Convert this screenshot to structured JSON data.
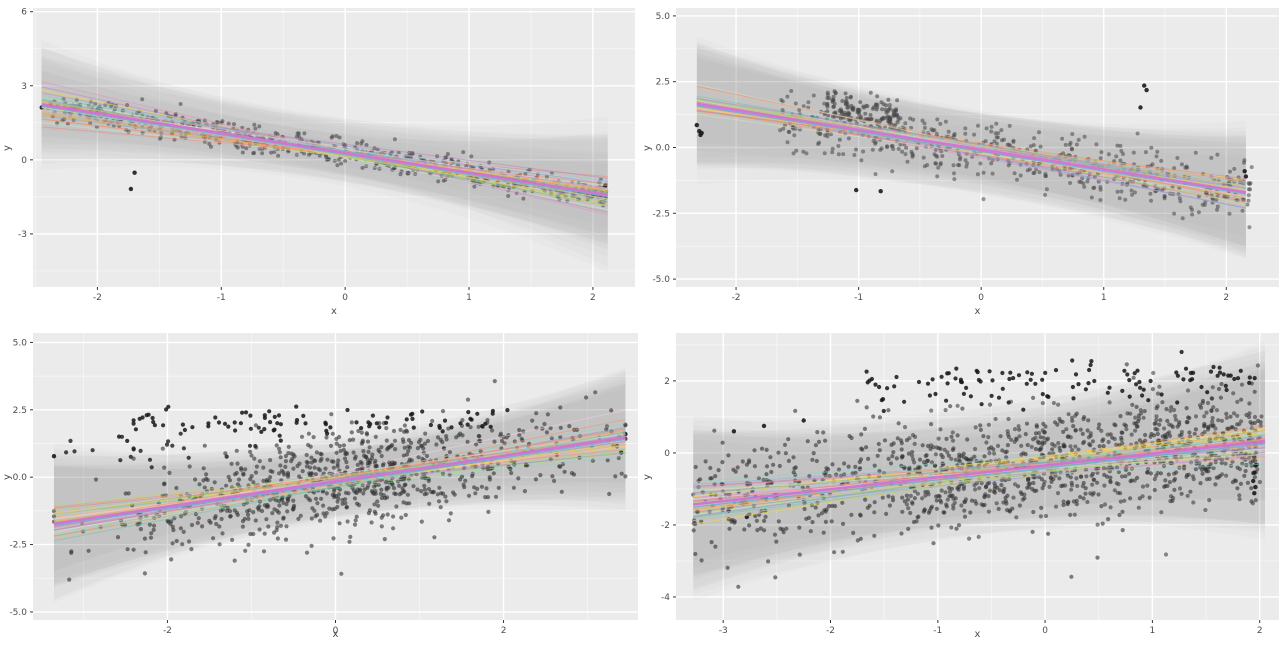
{
  "figure": {
    "rows": 2,
    "cols": 2,
    "description": "2x2 grid of ggplot-style scatter plots with posterior regression line draws, gray uncertainty ribbons and a thick orchid mean fit line"
  },
  "style": {
    "panel_bg": "#ebebeb",
    "grid_major": "#ffffff",
    "grid_minor": "#f7f7f7",
    "tick_mark": "#333333",
    "tick_label": "#4d4d4d",
    "axis_label": "#4d4d4d",
    "fit_line": "#d16fd6",
    "accent_line": "#74a9d8",
    "ribbon": "#6e6e6e",
    "palette": [
      "#66c2a5",
      "#fc8d62",
      "#8da0cb",
      "#e78ac3",
      "#a6d854",
      "#ffd92f",
      "#e5c494",
      "#8dd3c7",
      "#bebada",
      "#fb8072",
      "#80b1d3",
      "#fdb462",
      "#b3de69",
      "#fccde5",
      "#bc80bd",
      "#ccebc5"
    ]
  },
  "chart_data": [
    {
      "type": "scatter",
      "position": "top-left",
      "xlabel": "x",
      "ylabel": "y",
      "x_domain": [
        -2.52,
        2.34
      ],
      "y_domain": [
        -5.15,
        6.15
      ],
      "x_major_ticks": [
        -2,
        -1,
        0,
        1,
        2
      ],
      "x_tick_labels": [
        "-2",
        "-1",
        "0",
        "1",
        "2"
      ],
      "y_major_ticks": [
        6,
        3,
        0,
        -3
      ],
      "y_tick_labels": [
        "6",
        "3",
        "0",
        "-3"
      ],
      "regression": {
        "intercept": 0.28,
        "slope": -0.8
      },
      "seed": 101,
      "clusters": [
        {
          "n": 760,
          "x": {
            "type": "uniform",
            "min": -2.42,
            "max": 2.12
          },
          "y": {
            "intercept": 0.28,
            "slope": -0.8,
            "sd": 0.27
          },
          "color": "#3f3f3f",
          "opacity": 0.55,
          "r": 2
        }
      ],
      "extra_points": [
        [
          -2.45,
          2.12
        ],
        [
          -1.7,
          -0.52
        ],
        [
          -1.73,
          -1.18
        ],
        [
          2.1,
          -1.05
        ]
      ],
      "extra_style": {
        "color": "#1a1a1a",
        "opacity": 0.9,
        "r": 2.2
      },
      "band": {
        "x_min": -2.45,
        "x_max": 2.12,
        "ribbons": 12,
        "hw_base": 1.0,
        "hw_sd": 0.18,
        "edge_extra": [
          0.6,
          1.6
        ],
        "center_shift": [
          -0.45,
          0.15
        ],
        "slope_jitter": 0.05,
        "intercept_jitter": 0.13,
        "opacity": 0.028
      },
      "spaghetti": {
        "n": 48,
        "slope_sd": 0.11,
        "intercept_sd": 0.12,
        "width": 1,
        "opacity": 0.5
      },
      "accent_lines": [
        {
          "offset": -0.07,
          "width": 1.4
        }
      ]
    },
    {
      "type": "scatter",
      "position": "top-right",
      "xlabel": "x",
      "ylabel": "y",
      "x_domain": [
        -2.49,
        2.43
      ],
      "y_domain": [
        -5.3,
        5.3
      ],
      "x_major_ticks": [
        -2,
        -1,
        0,
        1,
        2
      ],
      "x_tick_labels": [
        "-2",
        "-1",
        "0",
        "1",
        "2"
      ],
      "y_major_ticks": [
        5,
        2.5,
        0,
        -2.5,
        -5
      ],
      "y_tick_labels": [
        "5.0",
        "2.5",
        "0.0",
        "-2.5",
        "-5.0"
      ],
      "regression": {
        "intercept": -0.08,
        "slope": -0.75
      },
      "seed": 202,
      "clusters": [
        {
          "n": 620,
          "x": {
            "type": "striped",
            "min": -1.62,
            "max": 2.16,
            "step": 0.05,
            "jitter": 0.012
          },
          "y": {
            "intercept": -0.08,
            "slope": -0.75,
            "sd": 0.52
          },
          "color": "#474747",
          "opacity": 0.55,
          "r": 2
        },
        {
          "n": 150,
          "x": {
            "type": "striped",
            "min": -1.25,
            "max": -0.7,
            "step": 0.05,
            "jitter": 0.012
          },
          "y": {
            "intercept": 0.55,
            "slope": -0.75,
            "sd": 0.42
          },
          "color": "#474747",
          "opacity": 0.6,
          "r": 2
        }
      ],
      "extra_points": [
        [
          -2.32,
          0.85
        ],
        [
          -2.3,
          0.62
        ],
        [
          -2.28,
          0.55
        ],
        [
          -2.29,
          0.48
        ],
        [
          1.33,
          2.35
        ],
        [
          1.35,
          2.18
        ],
        [
          1.3,
          1.52
        ],
        [
          -1.02,
          -1.62
        ],
        [
          -0.82,
          -1.66
        ],
        [
          2.15,
          -0.9
        ],
        [
          2.16,
          -1.1
        ]
      ],
      "extra_style": {
        "color": "#1a1a1a",
        "opacity": 0.9,
        "r": 2.2
      },
      "band": {
        "x_min": -2.32,
        "x_max": 2.16,
        "ribbons": 12,
        "hw_base": 1.2,
        "hw_sd": 0.16,
        "edge_extra": [
          0.5,
          1.3
        ],
        "center_shift": [
          -0.3,
          0.3
        ],
        "slope_jitter": 0.05,
        "intercept_jitter": 0.15,
        "opacity": 0.028
      },
      "spaghetti": {
        "n": 48,
        "slope_sd": 0.11,
        "intercept_sd": 0.13,
        "width": 1,
        "opacity": 0.5
      },
      "accent_lines": [
        {
          "offset": -0.07,
          "width": 1.4
        }
      ]
    },
    {
      "type": "scatter",
      "position": "bottom-left",
      "xlabel": "x",
      "ylabel": "y",
      "x_domain": [
        -3.6,
        3.6
      ],
      "y_domain": [
        -5.3,
        5.35
      ],
      "x_major_ticks": [
        -2,
        0,
        2
      ],
      "x_tick_labels": [
        "-2",
        "0",
        "2"
      ],
      "y_major_ticks": [
        5,
        2.5,
        0,
        -2.5,
        -5
      ],
      "y_tick_labels": [
        "5.0",
        "2.5",
        "0.0",
        "-2.5",
        "-5.0"
      ],
      "regression": {
        "intercept": -0.15,
        "slope": 0.47
      },
      "seed": 303,
      "clusters": [
        {
          "n": 950,
          "x": {
            "type": "normal",
            "mean": 0.2,
            "sd": 1.35,
            "min": -3.35,
            "max": 3.45
          },
          "y": {
            "intercept": -0.2,
            "slope": 0.47,
            "sd": 0.85
          },
          "color": "#303030",
          "opacity": 0.6,
          "r": 2.1
        },
        {
          "n": 90,
          "x": {
            "type": "uniform",
            "min": -2.6,
            "max": 2.1
          },
          "y": {
            "intercept": 2.05,
            "slope": 0.02,
            "sd": 0.26
          },
          "color": "#161616",
          "opacity": 0.85,
          "r": 2.1
        },
        {
          "n": 22,
          "x": {
            "type": "uniform",
            "min": -3.3,
            "max": -0.9
          },
          "y": {
            "intercept": 1.0,
            "slope": 0,
            "sd": 0.3
          },
          "color": "#1c1c1c",
          "opacity": 0.8,
          "r": 2.1
        }
      ],
      "extra_points": [
        [
          3.45,
          1.6
        ],
        [
          3.4,
          0.92
        ],
        [
          3.35,
          1.15
        ],
        [
          -3.35,
          0.78
        ]
      ],
      "extra_style": {
        "color": "#1a1a1a",
        "opacity": 0.9,
        "r": 2.2
      },
      "band": {
        "x_min": -3.35,
        "x_max": 3.45,
        "ribbons": 12,
        "hw_base": 1.2,
        "hw_sd": 0.16,
        "edge_extra": [
          0.6,
          1.5
        ],
        "center_shift": [
          -0.2,
          0.4
        ],
        "slope_jitter": 0.04,
        "intercept_jitter": 0.13,
        "opacity": 0.028
      },
      "spaghetti": {
        "n": 50,
        "slope_sd": 0.09,
        "intercept_sd": 0.12,
        "width": 1,
        "opacity": 0.5
      },
      "accent_lines": [
        {
          "offset": -0.07,
          "width": 1.4
        }
      ]
    },
    {
      "type": "scatter",
      "position": "bottom-right",
      "xlabel": "x",
      "ylabel": "y",
      "x_domain": [
        -3.44,
        2.18
      ],
      "y_domain": [
        -4.64,
        3.33
      ],
      "x_major_ticks": [
        -3,
        -2,
        -1,
        0,
        1,
        2
      ],
      "x_tick_labels": [
        "-3",
        "-2",
        "-1",
        "0",
        "1",
        "2"
      ],
      "y_major_ticks": [
        2,
        0,
        -2,
        -4
      ],
      "y_tick_labels": [
        "2",
        "0",
        "-2",
        "-4"
      ],
      "regression": {
        "intercept": -0.35,
        "slope": 0.33
      },
      "seed": 404,
      "clusters": [
        {
          "n": 820,
          "x": {
            "type": "uniform",
            "min": -3.28,
            "max": 2.02
          },
          "y": {
            "intercept": -0.35,
            "slope": 0.33,
            "sd": 0.8
          },
          "color": "#303030",
          "opacity": 0.6,
          "r": 2.1
        },
        {
          "n": 520,
          "x": {
            "type": "uniform",
            "min": -1.35,
            "max": 2.02
          },
          "y": {
            "intercept": -0.35,
            "slope": 0.33,
            "sd": 0.75
          },
          "color": "#303030",
          "opacity": 0.55,
          "r": 2.1
        },
        {
          "n": 115,
          "x": {
            "type": "uniform",
            "min": -1.75,
            "max": 2.0
          },
          "y": {
            "intercept": 1.95,
            "slope": 0.06,
            "sd": 0.3
          },
          "color": "#161616",
          "opacity": 0.85,
          "r": 2.1
        }
      ],
      "extra_points": [
        [
          -3.24,
          -1.64
        ],
        [
          -2.95,
          -1.6
        ],
        [
          -2.6,
          -1.28
        ],
        [
          -2.78,
          -1.78
        ],
        [
          -2.62,
          0.75
        ],
        [
          -2.9,
          0.6
        ],
        [
          -2.25,
          0.9
        ],
        [
          1.95,
          -0.12
        ],
        [
          1.96,
          -0.35
        ],
        [
          1.95,
          -0.55
        ],
        [
          1.94,
          -0.78
        ],
        [
          1.96,
          -0.95
        ],
        [
          1.95,
          -1.12
        ],
        [
          1.9,
          0.35
        ]
      ],
      "extra_style": {
        "color": "#1a1a1a",
        "opacity": 0.9,
        "r": 2.2
      },
      "band": {
        "x_min": -3.28,
        "x_max": 2.05,
        "ribbons": 12,
        "hw_base": 1.45,
        "hw_sd": 0.16,
        "edge_extra": [
          0.4,
          1.0
        ],
        "center_shift": [
          -0.5,
          0.1
        ],
        "slope_jitter": 0.04,
        "intercept_jitter": 0.15,
        "opacity": 0.028
      },
      "spaghetti": {
        "n": 50,
        "slope_sd": 0.08,
        "intercept_sd": 0.13,
        "width": 1,
        "opacity": 0.5
      },
      "accent_lines": [
        {
          "offset": -0.07,
          "width": 1.4
        }
      ]
    }
  ]
}
